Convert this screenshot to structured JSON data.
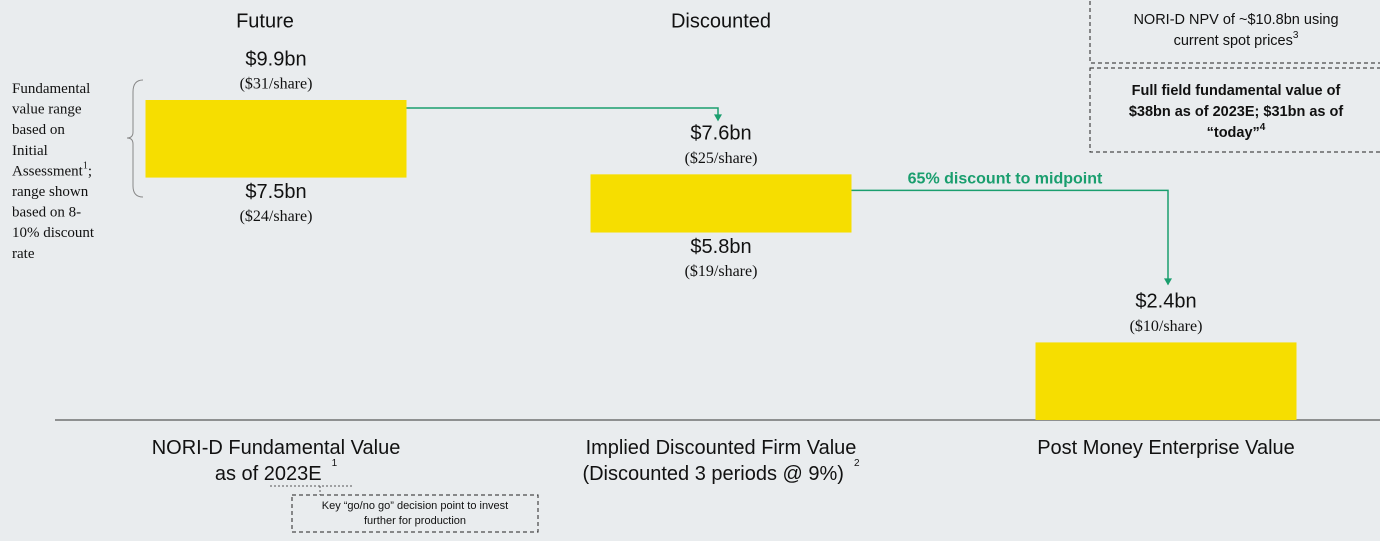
{
  "chart_data": {
    "type": "floating-bar",
    "color": "#f6de00",
    "headers": [
      "Future",
      "Discounted",
      null
    ],
    "categories": [
      {
        "lines": [
          "NORI-D Fundamental Value",
          "as of 2023E"
        ],
        "footnote": "1"
      },
      {
        "lines": [
          "Implied Discounted Firm Value",
          "(Discounted 3 periods @ 9%)"
        ],
        "footnote": "2"
      },
      {
        "lines": [
          "Post Money Enterprise Value"
        ],
        "footnote": null
      }
    ],
    "bars": [
      {
        "high": 9.9,
        "high_label": "$9.9bn",
        "high_per_share": 31,
        "high_per_share_label": "($31/share)",
        "low": 7.5,
        "low_label": "$7.5bn",
        "low_per_share": 24,
        "low_per_share_label": "($24/share)"
      },
      {
        "high": 7.6,
        "high_label": "$7.6bn",
        "high_per_share": 25,
        "high_per_share_label": "($25/share)",
        "low": 5.8,
        "low_label": "$5.8bn",
        "low_per_share": 19,
        "low_per_share_label": "($19/share)"
      },
      {
        "high": 2.4,
        "high_label": "$2.4bn",
        "high_per_share": 10,
        "high_per_share_label": "($10/share)",
        "low": null,
        "low_label": null,
        "low_per_share": null,
        "low_per_share_label": null
      }
    ],
    "side_note": {
      "lines": [
        "Fundamental",
        "value range",
        "based on",
        "Initial",
        "Assessment",
        "range shown",
        "based on 8-",
        "10% discount",
        "rate"
      ],
      "footnote": "1",
      "footnote_line": 4,
      "footnote_suffix": ";"
    },
    "discount_annotation": "65% discount to midpoint",
    "boxes": [
      {
        "lines": [
          "NORI-D NPV of ~$10.8bn using",
          "current spot prices"
        ],
        "footnote": "3"
      },
      {
        "lines": [
          "Full field fundamental value of",
          "$38bn as of 2023E; $31bn as of",
          "“today”"
        ],
        "footnote": "4"
      }
    ],
    "decision_note": {
      "lines": [
        "Key “go/no go” decision point to invest",
        "further for production"
      ]
    }
  }
}
